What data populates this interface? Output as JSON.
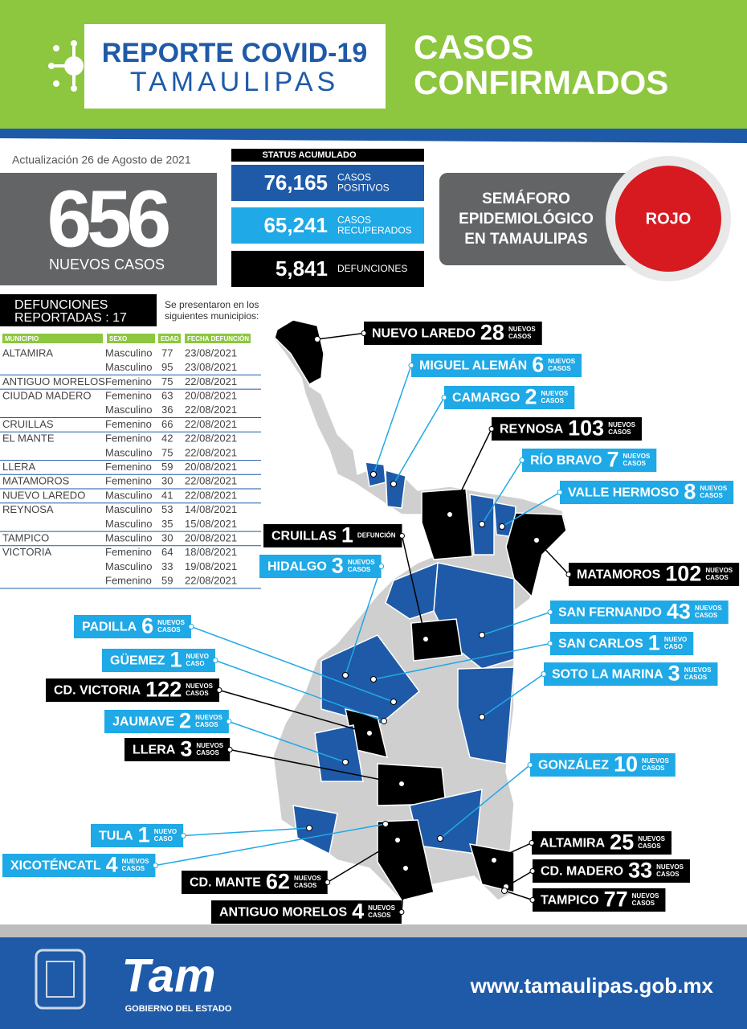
{
  "header": {
    "title_line1": "REPORTE COVID-19",
    "title_line2": "TAMAULIPAS",
    "subtitle_line1": "CASOS",
    "subtitle_line2": "CONFIRMADOS"
  },
  "update": "Actualización 26 de Agosto de 2021",
  "new_cases": {
    "value": "656",
    "label": "NUEVOS CASOS"
  },
  "status": {
    "title": "STATUS ACUMULADO",
    "items": [
      {
        "value": "76,165",
        "label_lines": [
          "CASOS",
          "POSITIVOS"
        ],
        "color": "#1e5aa8"
      },
      {
        "value": "65,241",
        "label_lines": [
          "CASOS",
          "RECUPERADOS"
        ],
        "color": "#1fa9e6"
      },
      {
        "value": "5,841",
        "label_lines": [
          "DEFUNCIONES"
        ],
        "color": "#000000"
      }
    ]
  },
  "semaforo": {
    "lines": [
      "SEMÁFORO",
      "EPIDEMIOLÓGICO",
      "EN TAMAULIPAS"
    ],
    "status": "ROJO"
  },
  "deaths": {
    "title_lines": [
      "DEFUNCIONES",
      "REPORTADAS : 17"
    ],
    "note_lines": [
      "Se presentaron en los",
      "siguientes municipios:"
    ],
    "columns": [
      "MUNICIPIO",
      "SEXO",
      "EDAD",
      "FECHA DEFUNCIÓN"
    ],
    "rows": [
      {
        "municipio": "ALTAMIRA",
        "cases": [
          [
            "Masculino",
            77,
            "23/08/2021"
          ],
          [
            "Masculino",
            95,
            "23/08/2021"
          ]
        ]
      },
      {
        "municipio": "ANTIGUO MORELOS",
        "cases": [
          [
            "Femenino",
            75,
            "22/08/2021"
          ]
        ]
      },
      {
        "municipio": "CIUDAD MADERO",
        "cases": [
          [
            "Femenino",
            63,
            "20/08/2021"
          ],
          [
            "Masculino",
            36,
            "22/08/2021"
          ]
        ]
      },
      {
        "municipio": "CRUILLAS",
        "cases": [
          [
            "Femenino",
            66,
            "22/08/2021"
          ]
        ]
      },
      {
        "municipio": "EL MANTE",
        "cases": [
          [
            "Femenino",
            42,
            "22/08/2021"
          ],
          [
            "Masculino",
            75,
            "22/08/2021"
          ]
        ]
      },
      {
        "municipio": "LLERA",
        "cases": [
          [
            "Femenino",
            59,
            "20/08/2021"
          ]
        ]
      },
      {
        "municipio": "MATAMOROS",
        "cases": [
          [
            "Femenino",
            30,
            "22/08/2021"
          ]
        ]
      },
      {
        "municipio": "NUEVO LAREDO",
        "cases": [
          [
            "Masculino",
            41,
            "22/08/2021"
          ]
        ]
      },
      {
        "municipio": "REYNOSA",
        "cases": [
          [
            "Masculino",
            53,
            "14/08/2021"
          ],
          [
            "Masculino",
            35,
            "15/08/2021"
          ]
        ]
      },
      {
        "municipio": "TAMPICO",
        "cases": [
          [
            "Masculino",
            30,
            "20/08/2021"
          ]
        ]
      },
      {
        "municipio": "VICTORIA",
        "cases": [
          [
            "Femenino",
            64,
            "18/08/2021"
          ],
          [
            "Masculino",
            33,
            "19/08/2021"
          ],
          [
            "Femenino",
            59,
            "22/08/2021"
          ]
        ]
      }
    ]
  },
  "map_labels": [
    {
      "name": "NUEVO LAREDO",
      "value": 28,
      "unit_lines": [
        "NUEVOS",
        "CASOS"
      ],
      "theme": "dark"
    },
    {
      "name": "MIGUEL ALEMÁN",
      "value": 6,
      "unit_lines": [
        "NUEVOS",
        "CASOS"
      ],
      "theme": "light"
    },
    {
      "name": "CAMARGO",
      "value": 2,
      "unit_lines": [
        "NUEVOS",
        "CASOS"
      ],
      "theme": "light"
    },
    {
      "name": "REYNOSA",
      "value": 103,
      "unit_lines": [
        "NUEVOS",
        "CASOS"
      ],
      "theme": "dark"
    },
    {
      "name": "RÍO BRAVO",
      "value": 7,
      "unit_lines": [
        "NUEVOS",
        "CASOS"
      ],
      "theme": "light"
    },
    {
      "name": "VALLE HERMOSO",
      "value": 8,
      "unit_lines": [
        "NUEVOS",
        "CASOS"
      ],
      "theme": "light"
    },
    {
      "name": "CRUILLAS",
      "value": 1,
      "unit_lines": [
        "DEFUNCIÓN"
      ],
      "theme": "dark"
    },
    {
      "name": "HIDALGO",
      "value": 3,
      "unit_lines": [
        "NUEVOS",
        "CASOS"
      ],
      "theme": "light"
    },
    {
      "name": "MATAMOROS",
      "value": 102,
      "unit_lines": [
        "NUEVOS",
        "CASOS"
      ],
      "theme": "dark"
    },
    {
      "name": "SAN FERNANDO",
      "value": 43,
      "unit_lines": [
        "NUEVOS",
        "CASOS"
      ],
      "theme": "light"
    },
    {
      "name": "SAN CARLOS",
      "value": 1,
      "unit_lines": [
        "NUEVO",
        "CASO"
      ],
      "theme": "light"
    },
    {
      "name": "SOTO LA MARINA",
      "value": 3,
      "unit_lines": [
        "NUEVOS",
        "CASOS"
      ],
      "theme": "light"
    },
    {
      "name": "PADILLA",
      "value": 6,
      "unit_lines": [
        "NUEVOS",
        "CASOS"
      ],
      "theme": "light"
    },
    {
      "name": "GÜEMEZ",
      "value": 1,
      "unit_lines": [
        "NUEVO",
        "CASO"
      ],
      "theme": "light"
    },
    {
      "name": "CD. VICTORIA",
      "value": 122,
      "unit_lines": [
        "NUEVOS",
        "CASOS"
      ],
      "theme": "dark"
    },
    {
      "name": "JAUMAVE",
      "value": 2,
      "unit_lines": [
        "NUEVOS",
        "CASOS"
      ],
      "theme": "light"
    },
    {
      "name": "LLERA",
      "value": 3,
      "unit_lines": [
        "NUEVOS",
        "CASOS"
      ],
      "theme": "dark"
    },
    {
      "name": "GONZÁLEZ",
      "value": 10,
      "unit_lines": [
        "NUEVOS",
        "CASOS"
      ],
      "theme": "light"
    },
    {
      "name": "TULA",
      "value": 1,
      "unit_lines": [
        "NUEVO",
        "CASO"
      ],
      "theme": "light"
    },
    {
      "name": "XICOTÉNCATL",
      "value": 4,
      "unit_lines": [
        "NUEVOS",
        "CASOS"
      ],
      "theme": "light"
    },
    {
      "name": "ALTAMIRA",
      "value": 25,
      "unit_lines": [
        "NUEVOS",
        "CASOS"
      ],
      "theme": "dark"
    },
    {
      "name": "CD. MANTE",
      "value": 62,
      "unit_lines": [
        "NUEVOS",
        "CASOS"
      ],
      "theme": "dark"
    },
    {
      "name": "CD. MADERO",
      "value": 33,
      "unit_lines": [
        "NUEVOS",
        "CASOS"
      ],
      "theme": "dark"
    },
    {
      "name": "ANTIGUO MORELOS",
      "value": 4,
      "unit_lines": [
        "NUEVOS",
        "CASOS"
      ],
      "theme": "dark"
    },
    {
      "name": "TAMPICO",
      "value": 77,
      "unit_lines": [
        "NUEVOS",
        "CASOS"
      ],
      "theme": "dark"
    }
  ],
  "footer": {
    "logo": "Tam",
    "logo_caption": "GOBIERNO DEL ESTADO",
    "website": "www.tamaulipas.gob.mx"
  }
}
